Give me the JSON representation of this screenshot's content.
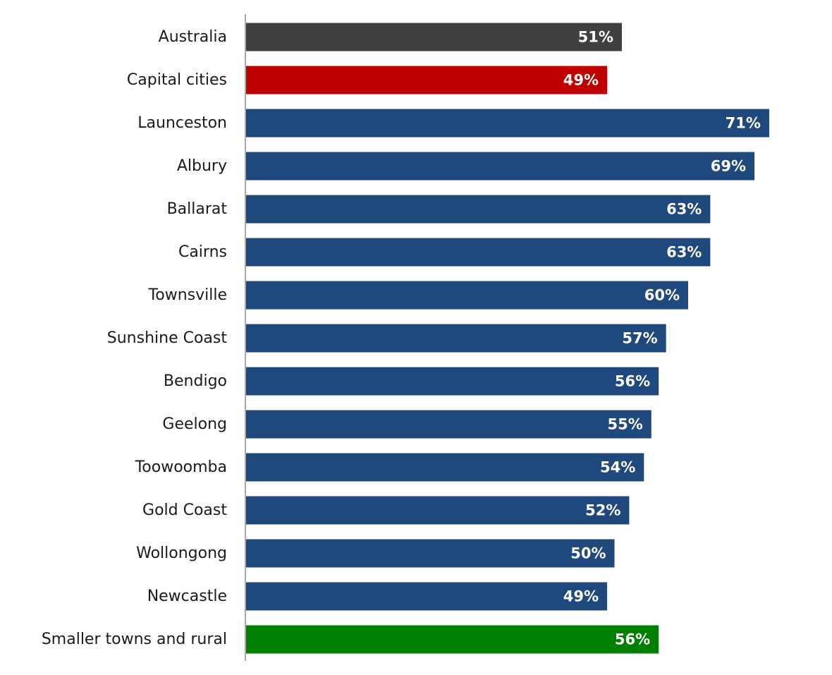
{
  "chart_data": {
    "type": "bar",
    "orientation": "horizontal",
    "categories": [
      "Australia",
      "Capital cities",
      "Launceston",
      "Albury",
      "Ballarat",
      "Cairns",
      "Townsville",
      "Sunshine Coast",
      "Bendigo",
      "Geelong",
      "Toowoomba",
      "Gold Coast",
      "Wollongong",
      "Newcastle",
      "Smaller towns and rural"
    ],
    "values": [
      51,
      49,
      71,
      69,
      63,
      63,
      60,
      57,
      56,
      55,
      54,
      52,
      50,
      49,
      56
    ],
    "value_labels": [
      "51%",
      "49%",
      "71%",
      "69%",
      "63%",
      "63%",
      "60%",
      "57%",
      "56%",
      "55%",
      "54%",
      "52%",
      "50%",
      "49%",
      "56%"
    ],
    "bar_colors": [
      "#404040",
      "#c00000",
      "#1f497d",
      "#1f497d",
      "#1f497d",
      "#1f497d",
      "#1f497d",
      "#1f497d",
      "#1f497d",
      "#1f497d",
      "#1f497d",
      "#1f497d",
      "#1f497d",
      "#1f497d",
      "#008000"
    ],
    "title": "",
    "xlabel": "",
    "ylabel": "",
    "xlim": [
      0,
      72
    ],
    "grid": false,
    "legend": "none"
  }
}
